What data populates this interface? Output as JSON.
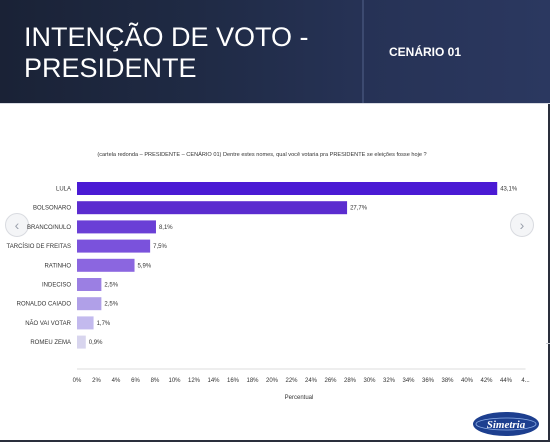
{
  "header": {
    "title": "INTENÇÃO DE VOTO -\nPRESIDENTE",
    "scenario": "CENÁRIO 01"
  },
  "logo_text": "Simetria",
  "colors": {
    "header_bg": "#1f2a44",
    "bar_shades": [
      "#4a1ad4",
      "#5b2ccf",
      "#6a3fd6",
      "#7a52dc",
      "#8b66e0",
      "#9b7fe3",
      "#b0a0e8",
      "#c3baee",
      "#d8d5ee"
    ]
  },
  "chart_data": {
    "type": "bar",
    "orientation": "horizontal",
    "title": "(cartela redonda – PRESIDENTE – CENÁRIO 01) Dentre estes nomes, qual você votaria pra PRESIDENTE se eleições fosse hoje ?",
    "xlabel": "Percentual",
    "ylabel": "",
    "categories": [
      "LULA",
      "BOLSONARO",
      "BRANCO/NULO",
      "TARCÍSIO DE FREITAS",
      "RATINHO",
      "INDECISO",
      "RONALDO CAIADO",
      "NÃO VAI VOTAR",
      "ROMEU ZEMA"
    ],
    "values": [
      43.1,
      27.7,
      8.1,
      7.5,
      5.9,
      2.5,
      2.5,
      1.7,
      0.9
    ],
    "value_labels": [
      "43,1%",
      "27,7%",
      "8,1%",
      "7,5%",
      "5,9%",
      "2,5%",
      "2,5%",
      "1,7%",
      "0,9%"
    ],
    "x_ticks": [
      "0%",
      "2%",
      "4%",
      "6%",
      "8%",
      "10%",
      "12%",
      "14%",
      "16%",
      "18%",
      "20%",
      "22%",
      "24%",
      "26%",
      "28%",
      "30%",
      "32%",
      "34%",
      "36%",
      "38%",
      "40%",
      "42%",
      "44%",
      "4..."
    ],
    "xlim": [
      0,
      46
    ],
    "grid": false,
    "legend": "none"
  }
}
